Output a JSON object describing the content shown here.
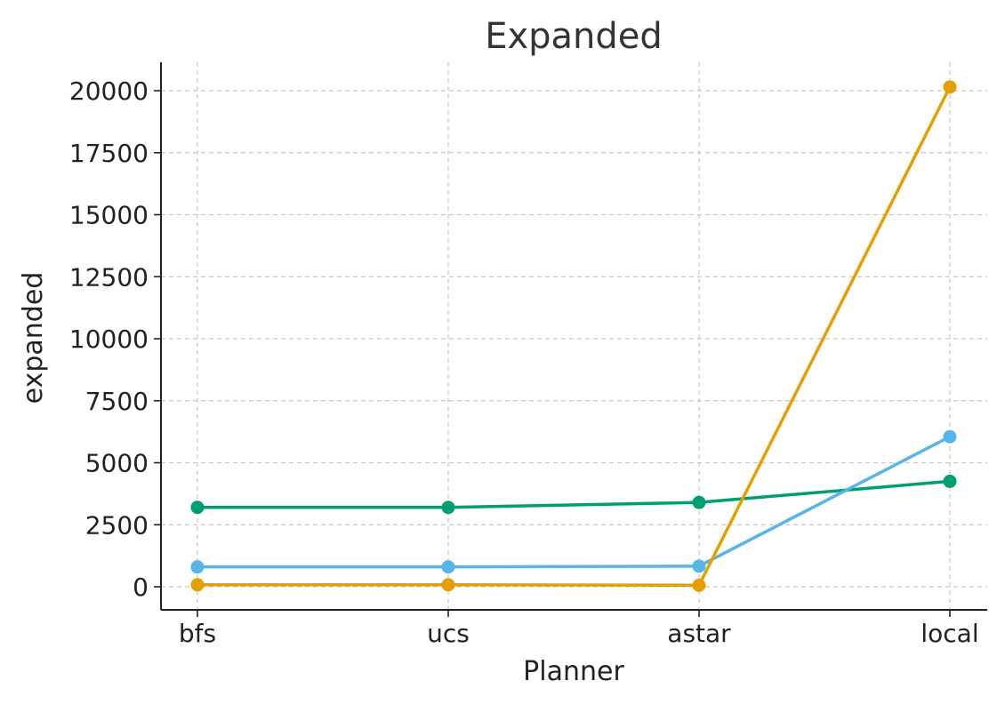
{
  "chart_data": {
    "type": "line",
    "title": "Expanded",
    "xlabel": "Planner",
    "ylabel": "expanded",
    "categories": [
      "bfs",
      "ucs",
      "astar",
      "local"
    ],
    "ylim": [
      -900,
      21200
    ],
    "yticks": [
      0,
      2500,
      5000,
      7500,
      10000,
      12500,
      15000,
      17500,
      20000
    ],
    "grid": true,
    "legend": "none",
    "series": [
      {
        "color": "#009E73",
        "values": [
          3200,
          3200,
          3400,
          4250
        ]
      },
      {
        "color": "#56B4E9",
        "values": [
          800,
          800,
          830,
          6050
        ]
      },
      {
        "color": "#E69F00",
        "values": [
          80,
          80,
          60,
          20150
        ]
      }
    ]
  }
}
